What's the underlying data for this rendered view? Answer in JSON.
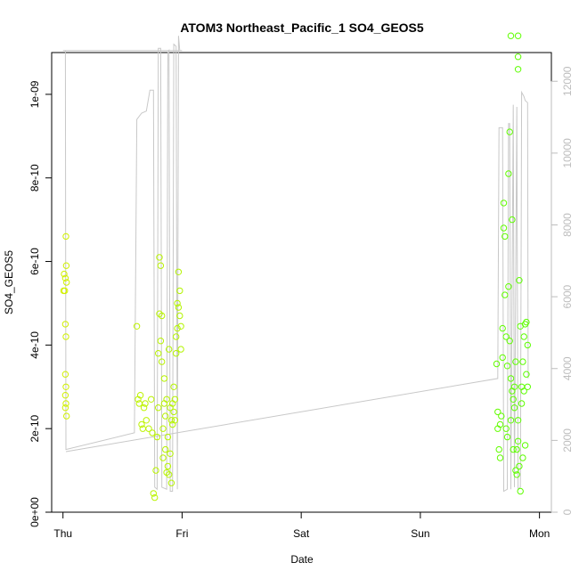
{
  "chart_data": {
    "type": "scatter",
    "title": "ATOM3 Northeast_Pacific_1 SO4_GEOS5",
    "xlabel": "Date",
    "ylabel": "SO4_GEOS5",
    "x_ticks": [
      {
        "label": "Thu",
        "value": 0
      },
      {
        "label": "Fri",
        "value": 1
      },
      {
        "label": "Sat",
        "value": 2
      },
      {
        "label": "Sun",
        "value": 3
      },
      {
        "label": "Mon",
        "value": 4
      }
    ],
    "xlim": [
      -0.095,
      4.1
    ],
    "ylim": [
      0,
      1.1e-09
    ],
    "y_ticks": [
      {
        "label": "0e+00",
        "value": 0
      },
      {
        "label": "2e-10",
        "value": 2e-10
      },
      {
        "label": "4e-10",
        "value": 4e-10
      },
      {
        "label": "6e-10",
        "value": 6e-10
      },
      {
        "label": "8e-10",
        "value": 8e-10
      },
      {
        "label": "1e-09",
        "value": 1e-09
      }
    ],
    "y2lim": [
      0,
      12800
    ],
    "y2_ticks": [
      {
        "label": "0",
        "value": 0
      },
      {
        "label": "2000",
        "value": 2000
      },
      {
        "label": "4000",
        "value": 4000
      },
      {
        "label": "6000",
        "value": 6000
      },
      {
        "label": "8000",
        "value": 8000
      },
      {
        "label": "10000",
        "value": 10000
      },
      {
        "label": "12000",
        "value": 12000
      }
    ],
    "colors": {
      "points_start": "#d4f000",
      "points_end": "#55ff00",
      "altitude_line": "#c8c8c8",
      "right_axis": "#bdbdbd",
      "frame": "#000000"
    },
    "points": [
      [
        0.005,
        5.3e-10
      ],
      [
        0.01,
        5.7e-10
      ],
      [
        0.015,
        5.3e-10
      ],
      [
        0.02,
        5.6e-10
      ],
      [
        0.025,
        6.6e-10
      ],
      [
        0.028,
        5.9e-10
      ],
      [
        0.03,
        5.5e-10
      ],
      [
        0.02,
        4.5e-10
      ],
      [
        0.025,
        4.2e-10
      ],
      [
        0.02,
        3.3e-10
      ],
      [
        0.025,
        3e-10
      ],
      [
        0.02,
        2.8e-10
      ],
      [
        0.025,
        2.6e-10
      ],
      [
        0.02,
        2.5e-10
      ],
      [
        0.03,
        2.3e-10
      ],
      [
        0.62,
        4.45e-10
      ],
      [
        0.63,
        2.7e-10
      ],
      [
        0.64,
        2.6e-10
      ],
      [
        0.65,
        2.8e-10
      ],
      [
        0.66,
        2.1e-10
      ],
      [
        0.67,
        2e-10
      ],
      [
        0.68,
        2.5e-10
      ],
      [
        0.69,
        2.6e-10
      ],
      [
        0.7,
        2.2e-10
      ],
      [
        0.72,
        2e-10
      ],
      [
        0.74,
        2.7e-10
      ],
      [
        0.75,
        1.9e-10
      ],
      [
        0.76,
        4.5e-11
      ],
      [
        0.77,
        3.5e-11
      ],
      [
        0.78,
        1e-10
      ],
      [
        0.79,
        1.8e-10
      ],
      [
        0.8,
        2.5e-10
      ],
      [
        0.8,
        3.8e-10
      ],
      [
        0.81,
        4.75e-10
      ],
      [
        0.81,
        6.1e-10
      ],
      [
        0.82,
        5.9e-10
      ],
      [
        0.82,
        4.1e-10
      ],
      [
        0.83,
        4.7e-10
      ],
      [
        0.83,
        3.6e-10
      ],
      [
        0.84,
        2e-10
      ],
      [
        0.84,
        1.3e-10
      ],
      [
        0.85,
        2.6e-10
      ],
      [
        0.85,
        3.2e-10
      ],
      [
        0.86,
        2.3e-10
      ],
      [
        0.86,
        1.5e-10
      ],
      [
        0.87,
        9.5e-11
      ],
      [
        0.87,
        2.7e-10
      ],
      [
        0.88,
        1.8e-10
      ],
      [
        0.88,
        1.1e-10
      ],
      [
        0.89,
        9e-11
      ],
      [
        0.89,
        3.9e-10
      ],
      [
        0.9,
        2.5e-10
      ],
      [
        0.9,
        1.4e-10
      ],
      [
        0.91,
        7e-11
      ],
      [
        0.91,
        2.2e-10
      ],
      [
        0.92,
        2.6e-10
      ],
      [
        0.92,
        2.1e-10
      ],
      [
        0.93,
        3e-10
      ],
      [
        0.93,
        2.4e-10
      ],
      [
        0.94,
        2.7e-10
      ],
      [
        0.94,
        2.2e-10
      ],
      [
        0.95,
        4.2e-10
      ],
      [
        0.95,
        3.8e-10
      ],
      [
        0.96,
        5e-10
      ],
      [
        0.96,
        4.4e-10
      ],
      [
        0.97,
        5.75e-10
      ],
      [
        0.97,
        4.9e-10
      ],
      [
        0.98,
        5.3e-10
      ],
      [
        0.98,
        4.7e-10
      ],
      [
        0.99,
        3.9e-10
      ],
      [
        0.99,
        4.45e-10
      ],
      [
        3.64,
        3.55e-10
      ],
      [
        3.65,
        2.4e-10
      ],
      [
        3.65,
        2e-10
      ],
      [
        3.66,
        1.5e-10
      ],
      [
        3.67,
        1.3e-10
      ],
      [
        3.67,
        2.1e-10
      ],
      [
        3.68,
        2.3e-10
      ],
      [
        3.69,
        4.4e-10
      ],
      [
        3.69,
        3.7e-10
      ],
      [
        3.7,
        7.4e-10
      ],
      [
        3.7,
        6.8e-10
      ],
      [
        3.71,
        6.6e-10
      ],
      [
        3.71,
        5.2e-10
      ],
      [
        3.72,
        4.2e-10
      ],
      [
        3.72,
        2e-10
      ],
      [
        3.73,
        3.5e-10
      ],
      [
        3.73,
        1.8e-10
      ],
      [
        3.74,
        8.1e-10
      ],
      [
        3.74,
        5.4e-10
      ],
      [
        3.75,
        9.1e-10
      ],
      [
        3.75,
        4.1e-10
      ],
      [
        3.76,
        3.2e-10
      ],
      [
        3.76,
        2.2e-10
      ],
      [
        3.77,
        7e-10
      ],
      [
        3.77,
        2.9e-10
      ],
      [
        3.78,
        2.7e-10
      ],
      [
        3.78,
        1.5e-10
      ],
      [
        3.79,
        3e-10
      ],
      [
        3.79,
        2.5e-10
      ],
      [
        3.8,
        3.6e-10
      ],
      [
        3.8,
        1e-10
      ],
      [
        3.81,
        1.5e-10
      ],
      [
        3.81,
        9e-11
      ],
      [
        3.82,
        2.2e-10
      ],
      [
        3.82,
        1.7e-10
      ],
      [
        3.83,
        1.1e-10
      ],
      [
        3.83,
        5.55e-10
      ],
      [
        3.84,
        4.45e-10
      ],
      [
        3.84,
        5e-11
      ],
      [
        3.85,
        3e-10
      ],
      [
        3.85,
        2.6e-10
      ],
      [
        3.86,
        1.3e-10
      ],
      [
        3.86,
        3.6e-10
      ],
      [
        3.87,
        4.2e-10
      ],
      [
        3.87,
        2.9e-10
      ],
      [
        3.88,
        4.5e-10
      ],
      [
        3.88,
        1.6e-10
      ],
      [
        3.89,
        4.55e-10
      ],
      [
        3.89,
        3.3e-10
      ],
      [
        3.9,
        4e-10
      ],
      [
        3.9,
        3e-10
      ],
      [
        3.82,
        1.14e-09
      ],
      [
        3.76,
        1.14e-09
      ],
      [
        3.82,
        1.09e-09
      ],
      [
        3.82,
        1.06e-09
      ]
    ],
    "altitude_line": [
      [
        0.02,
        1.105e-09
      ],
      [
        0.025,
        1.5e-10
      ],
      [
        0.6,
        1.9e-10
      ],
      [
        0.62,
        9.4e-10
      ],
      [
        0.66,
        9.55e-10
      ],
      [
        0.7,
        9.6e-10
      ],
      [
        0.73,
        1.01e-09
      ],
      [
        0.76,
        1.01e-09
      ],
      [
        0.77,
        6e-11
      ],
      [
        0.79,
        5.5e-11
      ],
      [
        0.8,
        1.11e-09
      ],
      [
        0.82,
        1.11e-09
      ],
      [
        0.83,
        6e-11
      ],
      [
        0.87,
        5.5e-11
      ],
      [
        0.88,
        1.1e-09
      ],
      [
        0.89,
        1.105e-09
      ],
      [
        0.9,
        5e-11
      ],
      [
        0.92,
        5e-11
      ],
      [
        0.93,
        1.12e-09
      ],
      [
        0.95,
        1.115e-09
      ],
      [
        0.96,
        5.5e-11
      ],
      [
        0.97,
        1.14e-09
      ],
      [
        0.98,
        1.105e-09
      ],
      [
        1.0,
        1.105e-09
      ],
      [
        0.0,
        1.105e-09
      ],
      [
        0.02,
        1.105e-09
      ]
    ],
    "altitude_line_2": [
      [
        0.025,
        1.45e-10
      ],
      [
        3.65,
        3.2e-10
      ],
      [
        3.66,
        9.2e-10
      ],
      [
        3.69,
        9.2e-10
      ],
      [
        3.7,
        5e-11
      ],
      [
        3.73,
        5.5e-11
      ],
      [
        3.74,
        9.3e-10
      ],
      [
        3.75,
        9.3e-10
      ],
      [
        3.76,
        5.5e-11
      ],
      [
        3.78,
        9.75e-10
      ],
      [
        3.79,
        6e-11
      ],
      [
        3.81,
        9.7e-10
      ],
      [
        3.82,
        5.5e-11
      ],
      [
        3.84,
        6e-11
      ],
      [
        3.85,
        1.005e-09
      ],
      [
        3.87,
        9.95e-10
      ],
      [
        3.88,
        9.85e-10
      ],
      [
        3.9,
        9.8e-10
      ],
      [
        3.905,
        3.2e-10
      ]
    ]
  }
}
